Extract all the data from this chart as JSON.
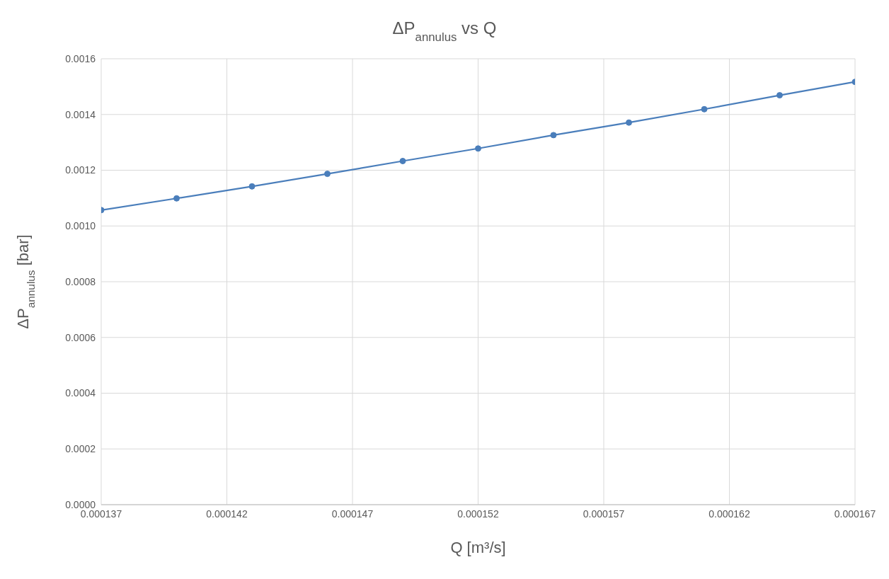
{
  "chart_data": {
    "type": "line",
    "title": "ΔP$_{annulus}$ vs Q",
    "xlabel": "Q [m³/s]",
    "ylabel": "ΔP$_{annulus}$ [bar]",
    "x": [
      0.000137,
      0.00014,
      0.000143,
      0.000146,
      0.000149,
      0.000152,
      0.000155,
      0.000158,
      0.000161,
      0.000164,
      0.000167
    ],
    "series": [
      {
        "color": "#4a7ebb",
        "values": [
          0.001057,
          0.001099,
          0.001142,
          0.001187,
          0.001233,
          0.001278,
          0.001326,
          0.001371,
          0.001419,
          0.001469,
          0.001517
        ]
      }
    ],
    "xlim": [
      0.000137,
      0.000167
    ],
    "xticks": [
      0.000137,
      0.000142,
      0.000147,
      0.000152,
      0.000157,
      0.000162,
      0.000167
    ],
    "ylim": [
      0,
      0.0016
    ],
    "yticks": [
      {
        "value": 0,
        "label": "0.0000"
      },
      {
        "value": 0.0002,
        "label": "0.0002"
      },
      {
        "value": 0.0004,
        "label": "0.0004"
      },
      {
        "value": 0.0006,
        "label": "0.0006"
      },
      {
        "value": 0.0008,
        "label": "0.0008"
      },
      {
        "value": 0.001,
        "label": "0.0010"
      },
      {
        "value": 0.0012,
        "label": "0.0012"
      },
      {
        "value": 0.0014,
        "label": "0.0014"
      },
      {
        "value": 0.0016,
        "label": "0.0016"
      }
    ],
    "grid": true,
    "marker": "circle",
    "line_style": "solid"
  }
}
